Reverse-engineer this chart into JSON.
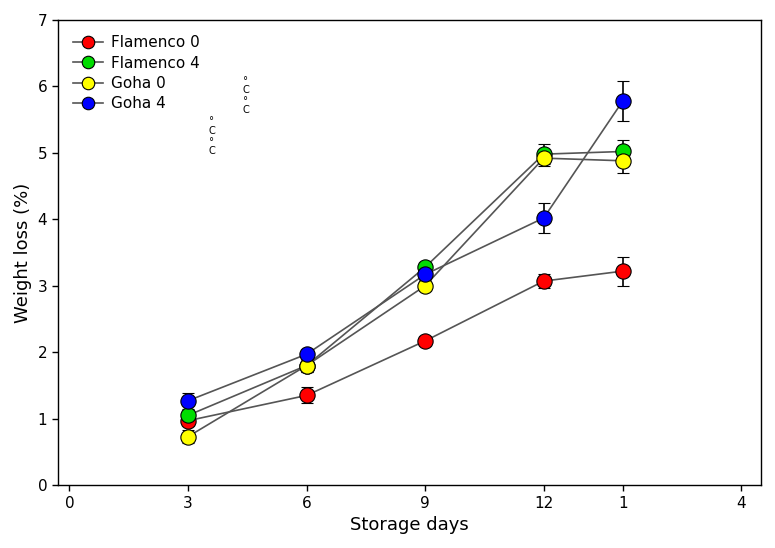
{
  "title": "",
  "xlabel": "Storage days",
  "ylabel": "Weight loss (%)",
  "x_positions": [
    3,
    6,
    9,
    12,
    14
  ],
  "x_tick_positions": [
    0,
    3,
    6,
    9,
    12,
    14,
    17
  ],
  "x_tick_labels": [
    "0",
    "3",
    "6",
    "9",
    "12",
    "1",
    "4"
  ],
  "xlim": [
    -0.3,
    17.5
  ],
  "ylim": [
    0,
    7
  ],
  "y_tick_positions": [
    0,
    1,
    2,
    3,
    4,
    5,
    6,
    7
  ],
  "series": [
    {
      "label_main": "Flamenco 0",
      "label_sup": "°",
      "label_sub": "C",
      "color": "#ff0000",
      "data_y": [
        0.97,
        1.35,
        2.17,
        3.07,
        3.22
      ],
      "yerr": [
        0.08,
        0.12,
        0.08,
        0.1,
        0.22
      ]
    },
    {
      "label_main": "Flamenco 4",
      "label_sup": "°",
      "label_sub": "C",
      "color": "#00dd00",
      "data_y": [
        1.05,
        1.8,
        3.28,
        4.98,
        5.02
      ],
      "yerr": [
        0.08,
        0.1,
        0.07,
        0.15,
        0.18
      ]
    },
    {
      "label_main": "Goha 0",
      "label_sup": "°",
      "label_sub": "C",
      "color": "#ffff00",
      "data_y": [
        0.73,
        1.8,
        3.0,
        4.92,
        4.88
      ],
      "yerr": [
        0.1,
        0.1,
        0.08,
        0.12,
        0.18
      ]
    },
    {
      "label_main": "Goha 4",
      "label_sup": "°",
      "label_sub": "C",
      "color": "#0000ff",
      "data_y": [
        1.27,
        1.97,
        3.17,
        4.02,
        5.78
      ],
      "yerr": [
        0.12,
        0.08,
        0.12,
        0.22,
        0.3
      ]
    }
  ],
  "line_color": "#555555",
  "markersize": 11,
  "marker_edgewidth": 0.8,
  "elinewidth": 1.2,
  "capsize": 4,
  "capthick": 1.2,
  "linewidth": 1.2,
  "background_color": "#ffffff",
  "legend_fontsize": 11,
  "axis_label_fontsize": 13,
  "tick_fontsize": 11
}
